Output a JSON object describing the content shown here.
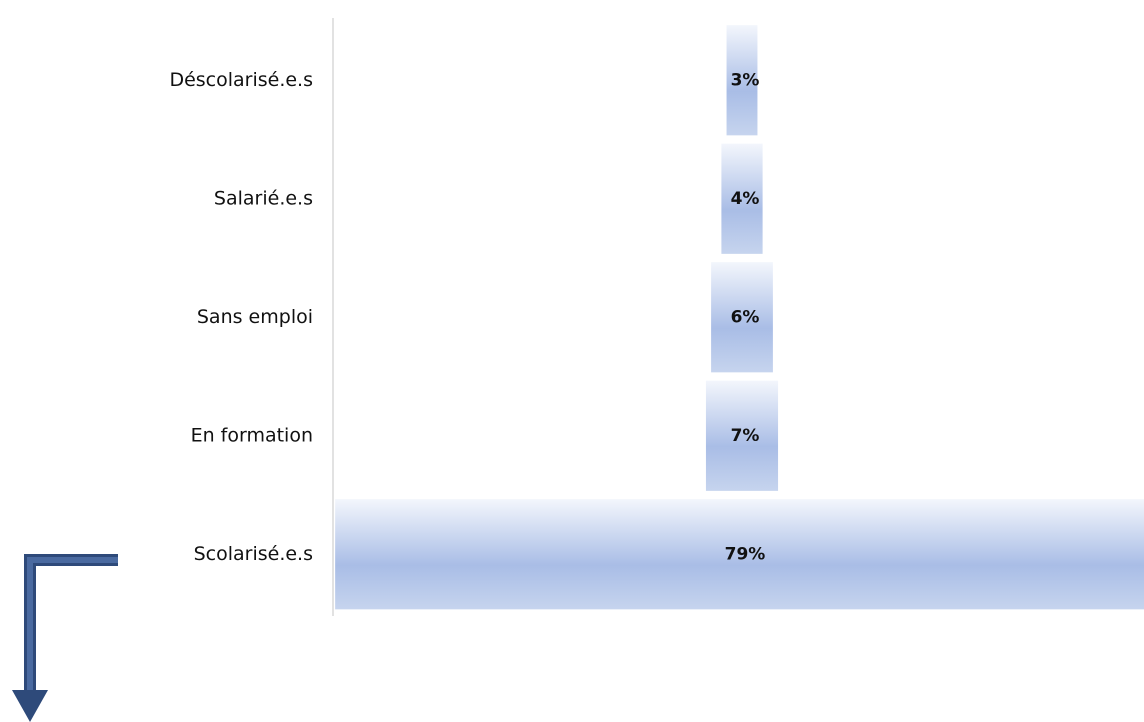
{
  "chart_data": {
    "type": "funnel",
    "categories": [
      "Déscolarisé.e.s",
      "Salarié.e.s",
      "Sans emploi",
      "En formation",
      "Scolarisé.e.s"
    ],
    "values": [
      3,
      4,
      6,
      7,
      79
    ],
    "value_labels": [
      "3%",
      "4%",
      "6%",
      "7%",
      "79%"
    ],
    "color": "#a9bde6"
  }
}
